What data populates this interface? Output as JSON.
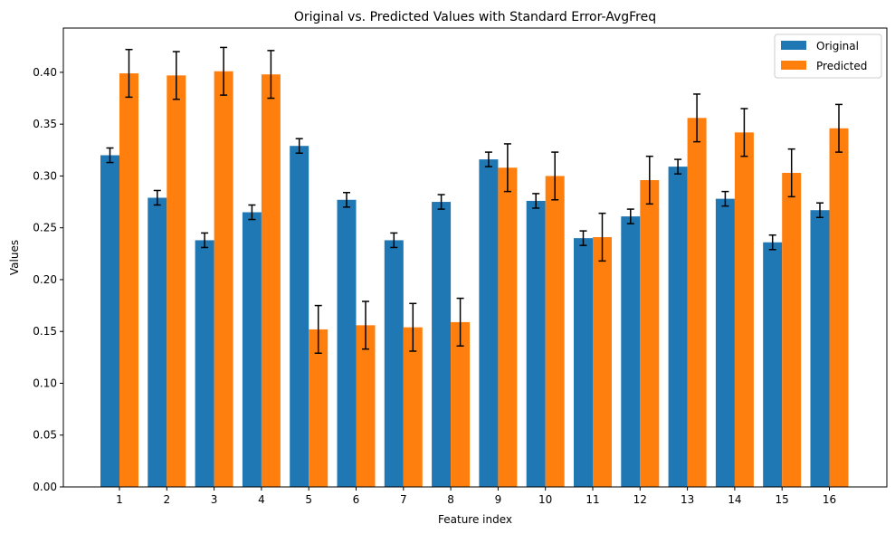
{
  "chart_data": {
    "type": "bar",
    "title": "Original vs. Predicted Values with Standard Error-AvgFreq",
    "xlabel": "Feature index",
    "ylabel": "Values",
    "categories": [
      "1",
      "2",
      "3",
      "4",
      "5",
      "6",
      "7",
      "8",
      "9",
      "10",
      "11",
      "12",
      "13",
      "14",
      "15",
      "16"
    ],
    "ylim": [
      0,
      0.4427
    ],
    "yticks": [
      "0.00",
      "0.05",
      "0.10",
      "0.15",
      "0.20",
      "0.25",
      "0.30",
      "0.35",
      "0.40"
    ],
    "grid": false,
    "legend_position": "top-right",
    "series": [
      {
        "name": "Original",
        "color": "#1f77b4",
        "values": [
          0.32,
          0.279,
          0.238,
          0.265,
          0.329,
          0.277,
          0.238,
          0.275,
          0.316,
          0.276,
          0.24,
          0.261,
          0.309,
          0.278,
          0.236,
          0.267
        ],
        "errors": [
          0.007,
          0.007,
          0.007,
          0.007,
          0.007,
          0.007,
          0.007,
          0.007,
          0.007,
          0.007,
          0.007,
          0.007,
          0.007,
          0.007,
          0.007,
          0.007
        ]
      },
      {
        "name": "Predicted",
        "color": "#ff7f0e",
        "values": [
          0.399,
          0.397,
          0.401,
          0.398,
          0.152,
          0.156,
          0.154,
          0.159,
          0.308,
          0.3,
          0.241,
          0.296,
          0.356,
          0.342,
          0.303,
          0.346
        ],
        "errors": [
          0.023,
          0.023,
          0.023,
          0.023,
          0.023,
          0.023,
          0.023,
          0.023,
          0.023,
          0.023,
          0.023,
          0.023,
          0.023,
          0.023,
          0.023,
          0.023
        ]
      }
    ]
  }
}
